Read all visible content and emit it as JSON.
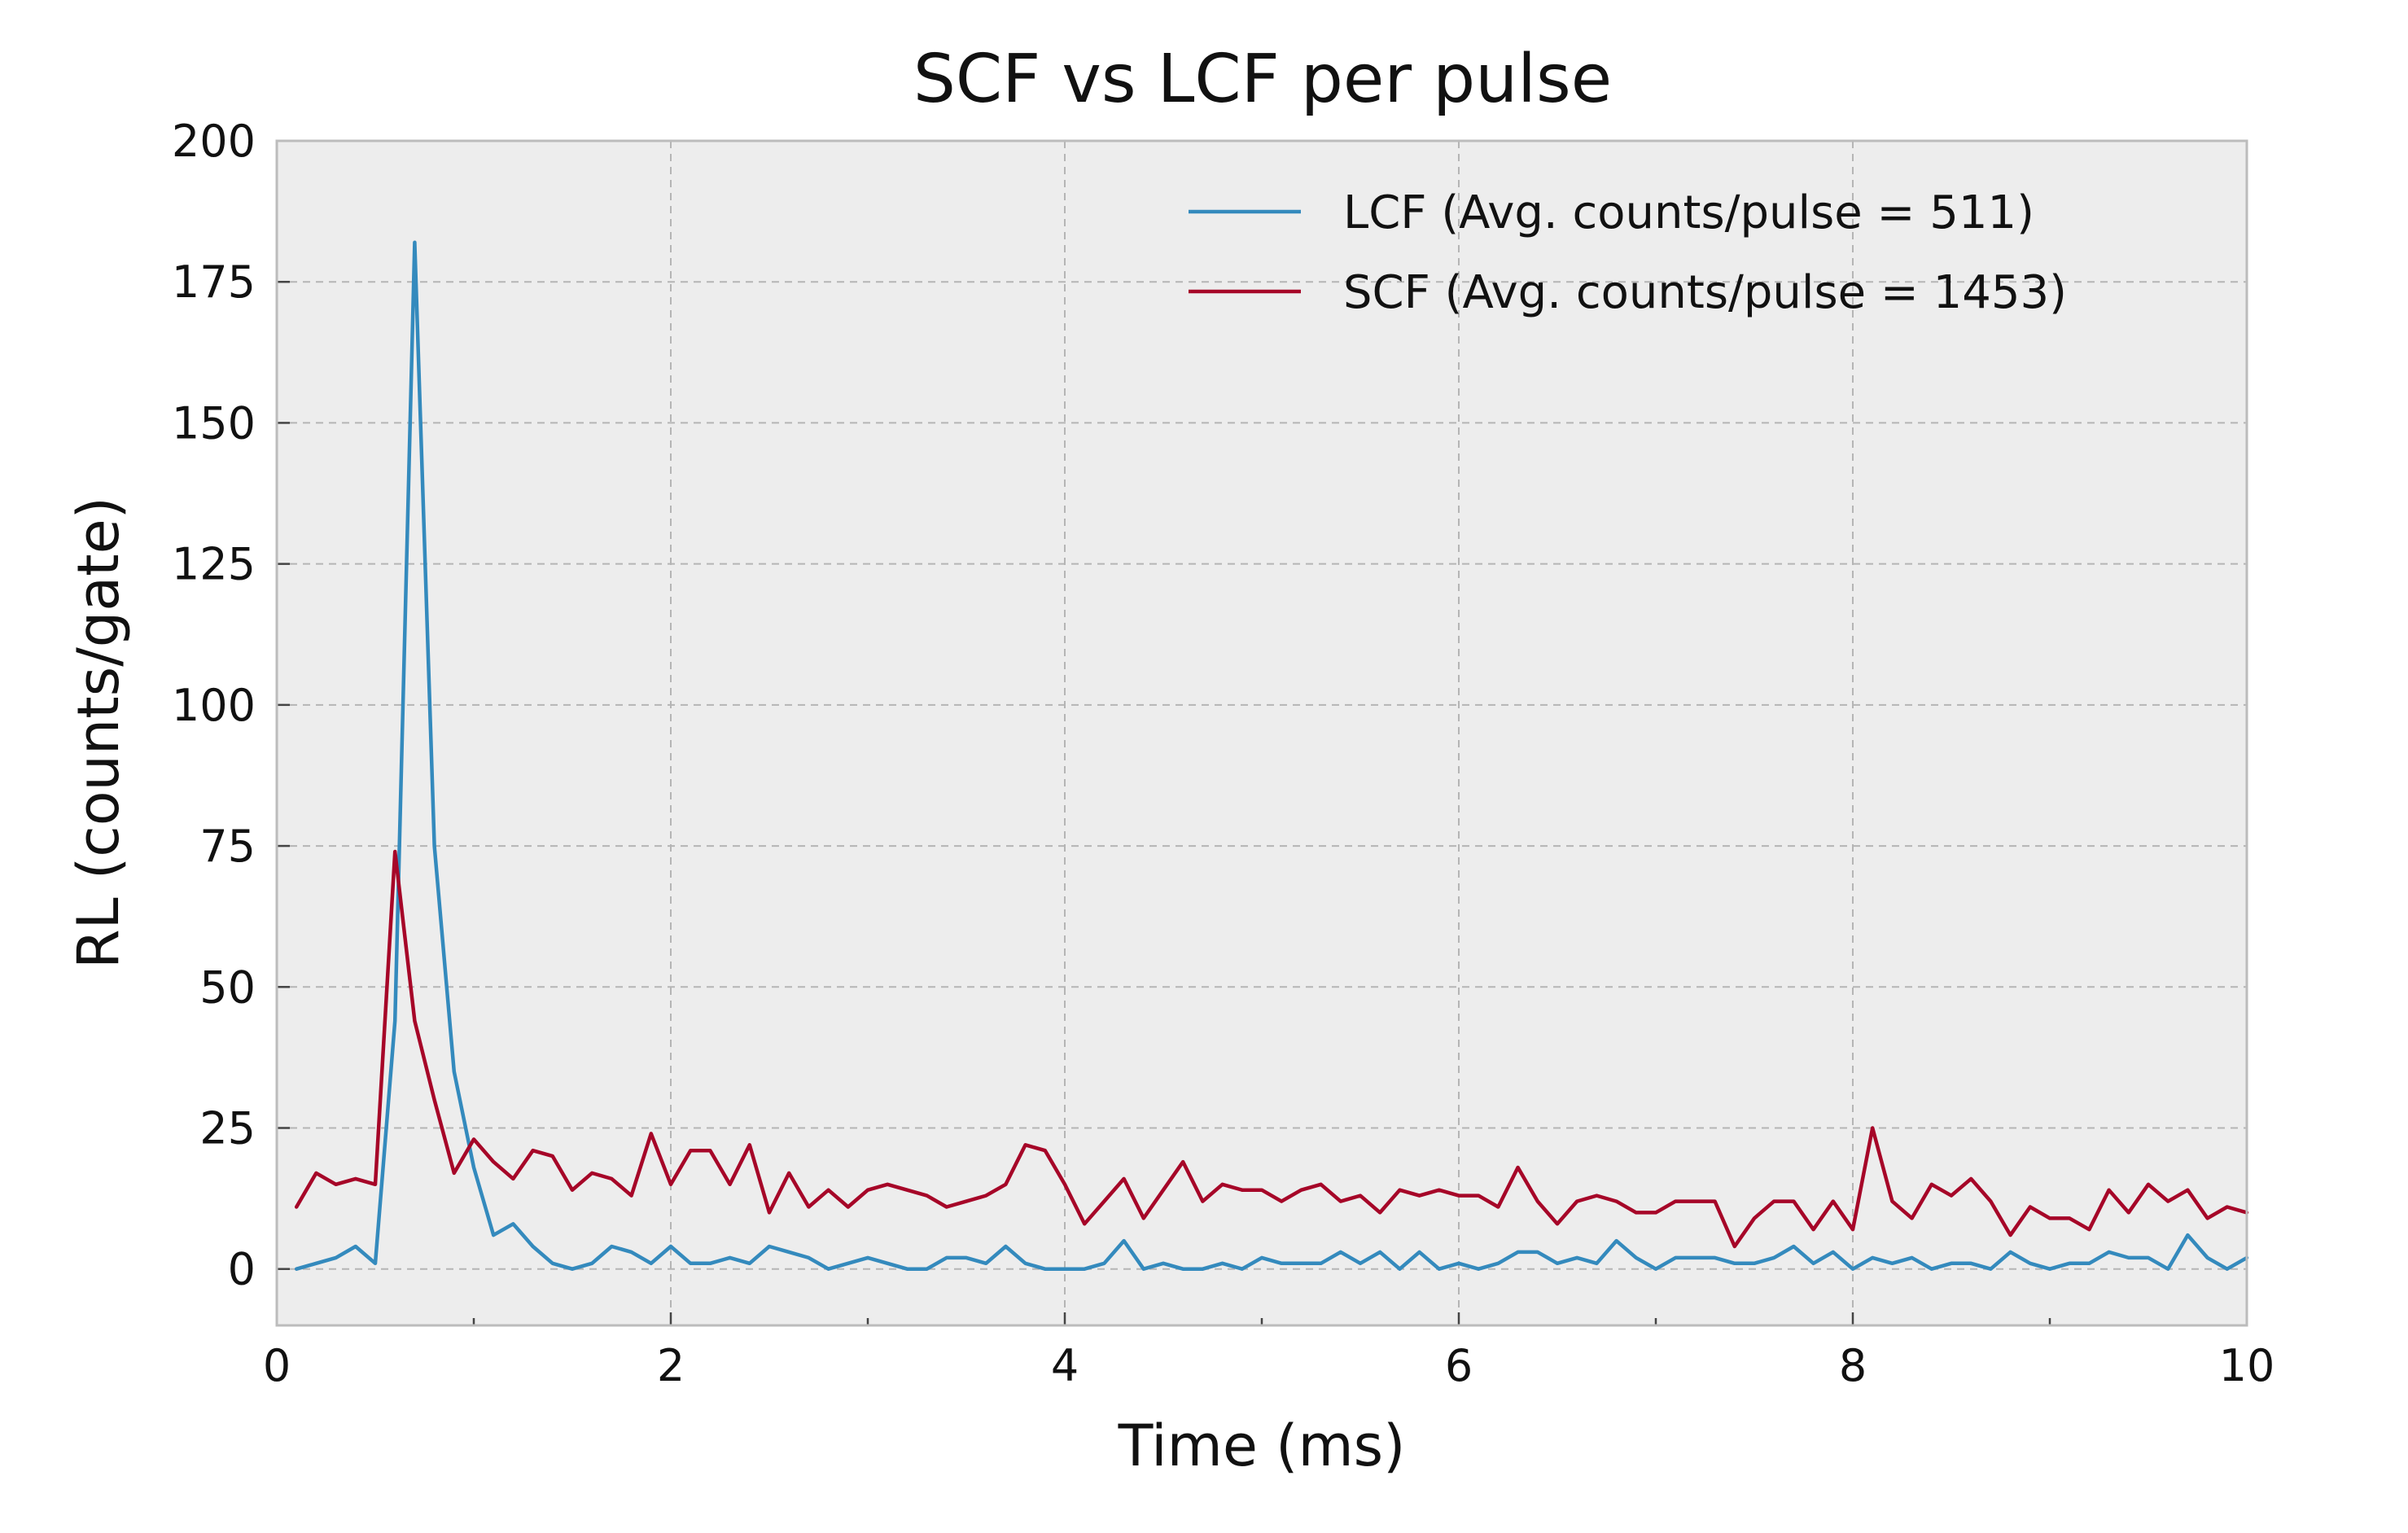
{
  "chart_data": {
    "type": "line",
    "title": "SCF vs LCF per pulse",
    "xlabel": "Time (ms)",
    "ylabel": "RL (counts/gate)",
    "xlim": [
      0,
      10
    ],
    "ylim": [
      -10,
      200
    ],
    "xticks": [
      0,
      2,
      4,
      6,
      8,
      10
    ],
    "xtick_labels": [
      "0",
      "2",
      "4",
      "6",
      "8",
      "10"
    ],
    "xticks_minor": [
      1,
      3,
      5,
      7,
      9
    ],
    "yticks": [
      0,
      25,
      50,
      75,
      100,
      125,
      150,
      175,
      200
    ],
    "ytick_labels": [
      "0",
      "25",
      "50",
      "75",
      "100",
      "125",
      "150",
      "175",
      "200"
    ],
    "grid": true,
    "legend_position": "top-right",
    "background": "#ededed",
    "x": [
      0.1,
      0.2,
      0.3,
      0.4,
      0.5,
      0.6,
      0.7,
      0.8,
      0.9,
      1.0,
      1.1,
      1.2,
      1.3,
      1.4,
      1.5,
      1.6,
      1.7,
      1.8,
      1.9,
      2.0,
      2.1,
      2.2,
      2.3,
      2.4,
      2.5,
      2.6,
      2.7,
      2.8,
      2.9,
      3.0,
      3.1,
      3.2,
      3.3,
      3.4,
      3.5,
      3.6,
      3.7,
      3.8,
      3.9,
      4.0,
      4.1,
      4.2,
      4.3,
      4.4,
      4.5,
      4.6,
      4.7,
      4.8,
      4.9,
      5.0,
      5.1,
      5.2,
      5.3,
      5.4,
      5.5,
      5.6,
      5.7,
      5.8,
      5.9,
      6.0,
      6.1,
      6.2,
      6.3,
      6.4,
      6.5,
      6.6,
      6.7,
      6.8,
      6.9,
      7.0,
      7.1,
      7.2,
      7.3,
      7.4,
      7.5,
      7.6,
      7.7,
      7.8,
      7.9,
      8.0,
      8.1,
      8.2,
      8.3,
      8.4,
      8.5,
      8.6,
      8.7,
      8.8,
      8.9,
      9.0,
      9.1,
      9.2,
      9.3,
      9.4,
      9.5,
      9.6,
      9.7,
      9.8,
      9.9,
      10.0
    ],
    "series": [
      {
        "name": "LCF (Avg. counts/pulse = 511)",
        "color": "#348abd",
        "values": [
          0,
          1,
          2,
          4,
          1,
          44,
          182,
          75,
          35,
          18,
          6,
          8,
          4,
          1,
          0,
          1,
          4,
          3,
          1,
          4,
          1,
          1,
          2,
          1,
          4,
          3,
          2,
          0,
          1,
          2,
          1,
          0,
          0,
          2,
          2,
          1,
          4,
          1,
          0,
          0,
          0,
          1,
          5,
          0,
          1,
          0,
          0,
          1,
          0,
          2,
          1,
          1,
          1,
          3,
          1,
          3,
          0,
          3,
          0,
          1,
          0,
          1,
          3,
          3,
          1,
          2,
          1,
          5,
          2,
          0,
          2,
          2,
          2,
          1,
          1,
          2,
          4,
          1,
          3,
          0,
          2,
          1,
          2,
          0,
          1,
          1,
          0,
          3,
          1,
          0,
          1,
          1,
          3,
          2,
          2,
          0,
          6,
          2,
          0,
          2
        ]
      },
      {
        "name": "SCF (Avg. counts/pulse = 1453)",
        "color": "#a60628",
        "values": [
          11,
          17,
          15,
          16,
          15,
          74,
          44,
          30,
          17,
          23,
          19,
          16,
          21,
          20,
          14,
          17,
          16,
          13,
          24,
          15,
          21,
          21,
          15,
          22,
          10,
          17,
          11,
          14,
          11,
          14,
          15,
          14,
          13,
          11,
          12,
          13,
          15,
          22,
          21,
          15,
          8,
          12,
          16,
          9,
          14,
          19,
          12,
          15,
          14,
          14,
          12,
          14,
          15,
          12,
          13,
          10,
          14,
          13,
          14,
          13,
          13,
          11,
          18,
          12,
          8,
          12,
          13,
          12,
          10,
          10,
          12,
          12,
          12,
          4,
          9,
          12,
          12,
          7,
          12,
          7,
          25,
          12,
          9,
          15,
          13,
          16,
          12,
          6,
          11,
          9,
          9,
          7,
          14,
          10,
          15,
          12,
          14,
          9,
          11,
          10
        ]
      }
    ]
  }
}
